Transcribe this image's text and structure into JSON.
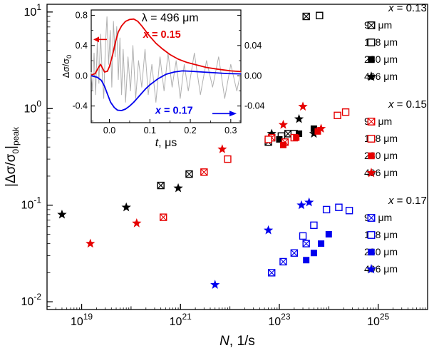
{
  "labels": {
    "xlabel_var": "N",
    "xlabel_rest": ", 1/s",
    "ylabel_p1": "|Δσ/σ",
    "ylabel_sub1": "0",
    "ylabel_p2": "|",
    "ylabel_sub2": "peak"
  },
  "legend": {
    "groups": [
      {
        "header_var": "x",
        "header_rest": " = 0.13",
        "color": "#000000",
        "items": [
          {
            "marker": "crossed-square",
            "label": "90 μm"
          },
          {
            "marker": "open-square",
            "label": "148 μm"
          },
          {
            "marker": "filled-square",
            "label": "280 μm"
          },
          {
            "marker": "star",
            "label": "496 μm"
          }
        ]
      },
      {
        "header_var": "x",
        "header_rest": " = 0.15",
        "color": "#e60000",
        "items": [
          {
            "marker": "crossed-square",
            "label": "90 μm"
          },
          {
            "marker": "open-square",
            "label": "148 μm"
          },
          {
            "marker": "filled-square",
            "label": "280 μm"
          },
          {
            "marker": "star",
            "label": "496 μm"
          }
        ]
      },
      {
        "header_var": "x",
        "header_rest": " = 0.17",
        "color": "#0000ee",
        "items": [
          {
            "marker": "crossed-square",
            "label": "90 μm"
          },
          {
            "marker": "open-square",
            "label": "148 μm"
          },
          {
            "marker": "filled-square",
            "label": "280 μm"
          },
          {
            "marker": "star",
            "label": "496 μm"
          }
        ]
      }
    ]
  },
  "chart_data": {
    "type": "scatter",
    "xlabel": "N, 1/s",
    "ylabel": "|Δσ/σ0|peak",
    "x_scale": "log",
    "y_scale": "log",
    "xlim_exp": [
      18.3,
      26.0
    ],
    "ylim_exp": [
      -2.08,
      1.08
    ],
    "x_major_exponents": [
      19,
      21,
      23,
      25
    ],
    "y_major_exponents": [
      -2,
      -1,
      0,
      1
    ],
    "legend_position": "right",
    "groups": [
      {
        "label": "x = 0.13",
        "color": "#000000",
        "series": [
          {
            "name": "90 μm",
            "marker": "crossed-square",
            "points": [
              [
                4e+20,
                0.16
              ],
              [
                1.5e+21,
                0.21
              ],
              [
                6e+22,
                0.45
              ],
              [
                1.5e+23,
                0.55
              ],
              [
                3.5e+23,
                9.0
              ]
            ]
          },
          {
            "name": "148 μm",
            "marker": "open-square",
            "points": [
              [
                7e+22,
                0.5
              ],
              [
                1.1e+23,
                0.52
              ],
              [
                2e+23,
                0.55
              ],
              [
                6.5e+23,
                9.2
              ]
            ]
          },
          {
            "name": "280 μm",
            "marker": "filled-square",
            "points": [
              [
                1e+23,
                0.48
              ],
              [
                2.5e+23,
                0.55
              ],
              [
                5e+23,
                0.62
              ]
            ]
          },
          {
            "name": "496 μm",
            "marker": "star",
            "points": [
              [
                4e+18,
                0.08
              ],
              [
                8e+19,
                0.095
              ],
              [
                9e+20,
                0.15
              ],
              [
                7e+22,
                0.55
              ],
              [
                2.5e+23,
                0.78
              ],
              [
                5e+23,
                0.55
              ]
            ]
          }
        ]
      },
      {
        "label": "x = 0.15",
        "color": "#e60000",
        "series": [
          {
            "name": "90 μm",
            "marker": "crossed-square",
            "points": [
              [
                4.5e+20,
                0.075
              ],
              [
                3e+21,
                0.22
              ],
              [
                7e+22,
                0.5
              ],
              [
                1.3e+23,
                0.45
              ]
            ]
          },
          {
            "name": "148 μm",
            "marker": "open-square",
            "points": [
              [
                9e+21,
                0.3
              ],
              [
                6e+22,
                0.48
              ],
              [
                2e+23,
                0.5
              ],
              [
                1.5e+24,
                0.85
              ],
              [
                2.2e+24,
                0.92
              ]
            ]
          },
          {
            "name": "280 μm",
            "marker": "filled-square",
            "points": [
              [
                1.2e+23,
                0.42
              ],
              [
                2.2e+23,
                0.5
              ],
              [
                6e+23,
                0.58
              ]
            ]
          },
          {
            "name": "496 μm",
            "marker": "star",
            "points": [
              [
                1.5e+19,
                0.04
              ],
              [
                1.3e+20,
                0.065
              ],
              [
                7e+21,
                0.38
              ],
              [
                1.2e+23,
                0.68
              ],
              [
                3e+23,
                1.05
              ],
              [
                7e+23,
                0.62
              ]
            ]
          }
        ]
      },
      {
        "label": "x = 0.17",
        "color": "#0000ee",
        "series": [
          {
            "name": "90 μm",
            "marker": "crossed-square",
            "points": [
              [
                7e+22,
                0.02
              ],
              [
                1.2e+23,
                0.026
              ],
              [
                2e+23,
                0.032
              ],
              [
                3.5e+23,
                0.04
              ]
            ]
          },
          {
            "name": "148 μm",
            "marker": "open-square",
            "points": [
              [
                3e+23,
                0.048
              ],
              [
                5e+23,
                0.062
              ],
              [
                9e+23,
                0.09
              ],
              [
                1.6e+24,
                0.095
              ],
              [
                2.6e+24,
                0.088
              ]
            ]
          },
          {
            "name": "280 μm",
            "marker": "filled-square",
            "points": [
              [
                3.5e+23,
                0.027
              ],
              [
                5e+23,
                0.032
              ],
              [
                7e+23,
                0.04
              ],
              [
                1e+24,
                0.05
              ]
            ]
          },
          {
            "name": "496 μm",
            "marker": "star",
            "points": [
              [
                5e+21,
                0.015
              ],
              [
                6e+22,
                0.055
              ],
              [
                2.8e+23,
                0.1
              ],
              [
                4e+23,
                0.107
              ]
            ]
          }
        ]
      }
    ],
    "inset": {
      "title": "λ = 496 μm",
      "title_pos": {
        "t": 0.15,
        "v": 0.72
      },
      "xlabel_var": "t",
      "xlabel_rest": ", μs",
      "ylabel_p1": "Δσ/σ",
      "ylabel_sub": "0",
      "xlim": [
        -0.045,
        0.325
      ],
      "ylim_left": [
        -0.62,
        0.87
      ],
      "right_axis_factor": 0.1,
      "x_ticks": [
        0.0,
        0.1,
        0.2,
        0.3
      ],
      "x_minor_ticks": [
        0.05,
        0.15,
        0.25
      ],
      "left_ticks": [
        0.8,
        0.4,
        0.0,
        -0.4
      ],
      "left_minor_ticks": [
        0.6,
        0.2,
        -0.2,
        -0.6
      ],
      "right_ticks": [
        0.04,
        0.0,
        -0.04
      ],
      "curve_labels": [
        {
          "var": "x",
          "rest": " = 0.15",
          "color": "#e60000",
          "t": 0.13,
          "v": 0.5
        },
        {
          "var": "x",
          "rest": " = 0.17",
          "color": "#0000ee",
          "t": 0.16,
          "v": -0.5
        }
      ],
      "arrows": [
        {
          "dir": "left",
          "color": "#e60000",
          "v": 0.48
        },
        {
          "dir": "right",
          "color": "#0000ee",
          "v": -0.5
        }
      ],
      "curves": [
        {
          "name": "noise",
          "color": "#b0b0b0",
          "width": 1,
          "points": [
            [
              -0.045,
              0.05
            ],
            [
              -0.042,
              -0.2
            ],
            [
              -0.038,
              0.3
            ],
            [
              -0.034,
              -0.25
            ],
            [
              -0.03,
              0.45
            ],
            [
              -0.026,
              -0.1
            ],
            [
              -0.022,
              0.55
            ],
            [
              -0.018,
              0.05
            ],
            [
              -0.014,
              -0.3
            ],
            [
              -0.01,
              0.4
            ],
            [
              -0.006,
              0.78
            ],
            [
              -0.002,
              0.15
            ],
            [
              0.002,
              0.6
            ],
            [
              0.006,
              -0.15
            ],
            [
              0.01,
              0.72
            ],
            [
              0.014,
              0.25
            ],
            [
              0.018,
              0.65
            ],
            [
              0.022,
              -0.05
            ],
            [
              0.026,
              0.5
            ],
            [
              0.03,
              -0.25
            ],
            [
              0.034,
              0.35
            ],
            [
              0.04,
              -0.35
            ],
            [
              0.046,
              0.25
            ],
            [
              0.052,
              -0.2
            ],
            [
              0.058,
              0.4
            ],
            [
              0.065,
              -0.3
            ],
            [
              0.072,
              0.2
            ],
            [
              0.08,
              -0.15
            ],
            [
              0.088,
              0.35
            ],
            [
              0.096,
              -0.25
            ],
            [
              0.105,
              0.15
            ],
            [
              0.115,
              -0.35
            ],
            [
              0.125,
              0.25
            ],
            [
              0.135,
              -0.2
            ],
            [
              0.145,
              0.3
            ],
            [
              0.155,
              -0.15
            ],
            [
              0.165,
              0.2
            ],
            [
              0.175,
              -0.3
            ],
            [
              0.185,
              0.15
            ],
            [
              0.195,
              -0.2
            ],
            [
              0.21,
              0.3
            ],
            [
              0.225,
              -0.25
            ],
            [
              0.24,
              0.2
            ],
            [
              0.255,
              -0.15
            ],
            [
              0.27,
              0.25
            ],
            [
              0.285,
              -0.3
            ],
            [
              0.3,
              0.15
            ],
            [
              0.315,
              -0.2
            ],
            [
              0.325,
              0.05
            ]
          ]
        },
        {
          "name": "x = 0.15",
          "color": "#e60000",
          "width": 1.8,
          "points": [
            [
              -0.045,
              0.01
            ],
            [
              -0.035,
              0.03
            ],
            [
              -0.028,
              0.1
            ],
            [
              -0.022,
              0.15
            ],
            [
              -0.017,
              0.1
            ],
            [
              -0.012,
              0.05
            ],
            [
              -0.005,
              0.06
            ],
            [
              0.0,
              0.12
            ],
            [
              0.008,
              0.28
            ],
            [
              0.015,
              0.45
            ],
            [
              0.022,
              0.58
            ],
            [
              0.03,
              0.66
            ],
            [
              0.04,
              0.72
            ],
            [
              0.05,
              0.745
            ],
            [
              0.06,
              0.75
            ],
            [
              0.07,
              0.72
            ],
            [
              0.08,
              0.66
            ],
            [
              0.09,
              0.59
            ],
            [
              0.1,
              0.52
            ],
            [
              0.115,
              0.43
            ],
            [
              0.13,
              0.36
            ],
            [
              0.15,
              0.28
            ],
            [
              0.17,
              0.22
            ],
            [
              0.19,
              0.18
            ],
            [
              0.21,
              0.15
            ],
            [
              0.24,
              0.11
            ],
            [
              0.27,
              0.085
            ],
            [
              0.3,
              0.065
            ],
            [
              0.325,
              0.055
            ]
          ]
        },
        {
          "name": "x = 0.17",
          "color": "#0000ee",
          "width": 1.8,
          "points": [
            [
              -0.045,
              0.0
            ],
            [
              -0.03,
              -0.02
            ],
            [
              -0.02,
              -0.06
            ],
            [
              -0.012,
              -0.14
            ],
            [
              -0.005,
              -0.24
            ],
            [
              0.003,
              -0.35
            ],
            [
              0.012,
              -0.42
            ],
            [
              0.02,
              -0.455
            ],
            [
              0.03,
              -0.46
            ],
            [
              0.04,
              -0.44
            ],
            [
              0.05,
              -0.4
            ],
            [
              0.06,
              -0.35
            ],
            [
              0.07,
              -0.29
            ],
            [
              0.08,
              -0.23
            ],
            [
              0.09,
              -0.17
            ],
            [
              0.1,
              -0.12
            ],
            [
              0.11,
              -0.08
            ],
            [
              0.12,
              -0.04
            ],
            [
              0.13,
              -0.01
            ],
            [
              0.14,
              0.02
            ],
            [
              0.16,
              0.05
            ],
            [
              0.18,
              0.065
            ],
            [
              0.2,
              0.06
            ],
            [
              0.23,
              0.05
            ],
            [
              0.26,
              0.04
            ],
            [
              0.29,
              0.03
            ],
            [
              0.325,
              0.025
            ]
          ]
        }
      ]
    }
  }
}
